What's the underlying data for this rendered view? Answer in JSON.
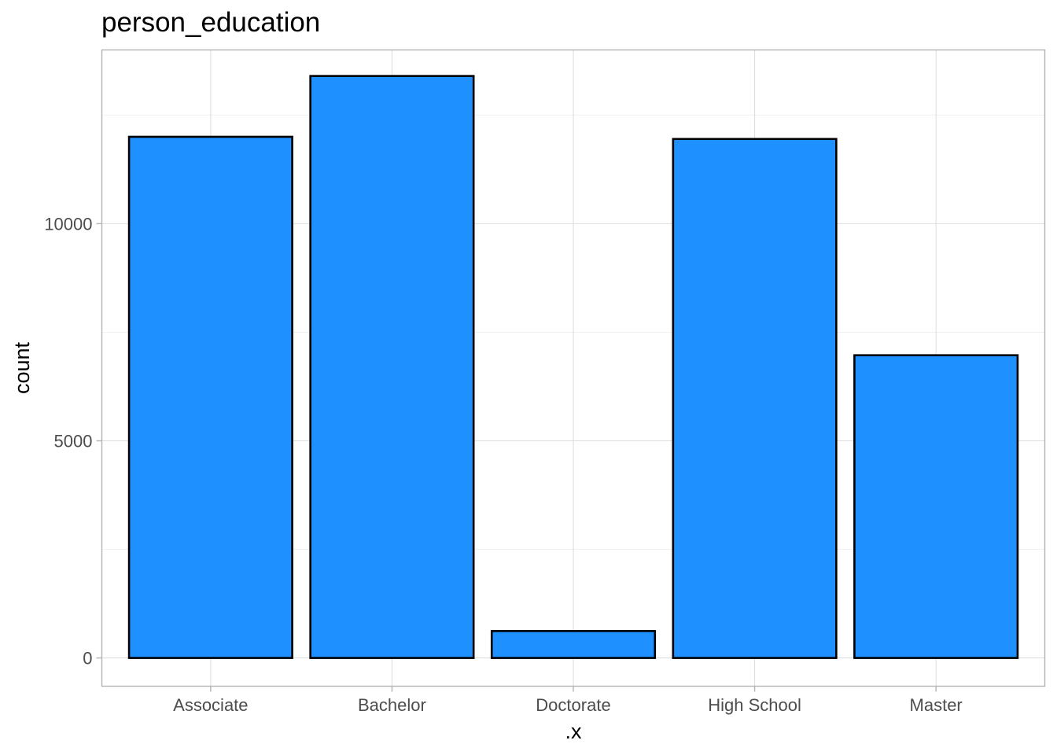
{
  "chart_data": {
    "type": "bar",
    "title": "person_education",
    "xlabel": ".x",
    "ylabel": "count",
    "categories": [
      "Associate",
      "Bachelor",
      "Doctorate",
      "High School",
      "Master"
    ],
    "values": [
      12000,
      13400,
      620,
      11950,
      6970
    ],
    "ylim": [
      -650,
      14000
    ],
    "yticks": [
      0,
      5000,
      10000
    ],
    "ytick_labels": [
      "0",
      "5000",
      "10000"
    ],
    "grid": true,
    "legend": "none",
    "colors": {
      "bar_fill": "#1E90FF",
      "bar_outline": "#000000"
    }
  }
}
